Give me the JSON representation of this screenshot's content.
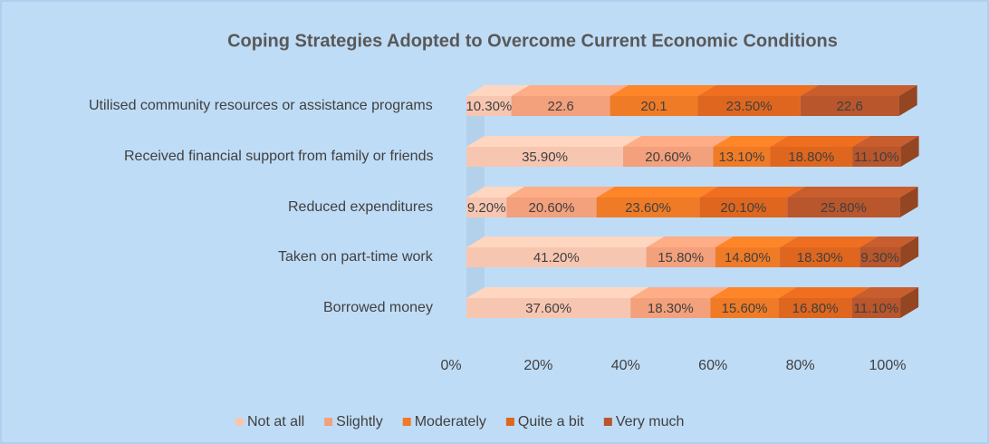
{
  "chart_data": {
    "type": "bar",
    "orientation": "horizontal",
    "stacked": true,
    "title": "Coping Strategies Adopted to Overcome Current Economic Conditions",
    "categories": [
      "Utilised community resources or assistance programs",
      "Received financial support from family or friends",
      "Reduced expenditures",
      "Taken on part-time work",
      "Borrowed money"
    ],
    "series": [
      {
        "name": "Not at all",
        "color": "#f7c6b1",
        "values": [
          10.3,
          35.9,
          9.2,
          41.2,
          37.6
        ],
        "value_labels": [
          "10.30%",
          "35.90%",
          "9.20%",
          "41.20%",
          "37.60%"
        ]
      },
      {
        "name": "Slightly",
        "color": "#f3a07c",
        "values": [
          22.6,
          20.6,
          20.6,
          15.8,
          18.3
        ],
        "value_labels": [
          "22.6",
          "20.60%",
          "20.60%",
          "15.80%",
          "18.30%"
        ]
      },
      {
        "name": "Moderately",
        "color": "#f07b26",
        "values": [
          20.1,
          13.1,
          23.6,
          14.8,
          15.6
        ],
        "value_labels": [
          "20.1",
          "13.10%",
          "23.60%",
          "14.80%",
          "15.60%"
        ]
      },
      {
        "name": "Quite a bit",
        "color": "#de661e",
        "values": [
          23.5,
          18.8,
          20.1,
          18.3,
          16.8
        ],
        "value_labels": [
          "23.50%",
          "18.80%",
          "20.10%",
          "18.30%",
          "16.80%"
        ]
      },
      {
        "name": "Very much",
        "color": "#b9562b",
        "values": [
          22.6,
          11.1,
          25.8,
          9.3,
          11.1
        ],
        "value_labels": [
          "22.6",
          "11.10%",
          "25.80%",
          "9.30%",
          "11.10%"
        ]
      }
    ],
    "xlim": [
      0,
      100
    ],
    "xticks": [
      {
        "value": 0,
        "label": "0%"
      },
      {
        "value": 20,
        "label": "20%"
      },
      {
        "value": 40,
        "label": "40%"
      },
      {
        "value": 60,
        "label": "60%"
      },
      {
        "value": 80,
        "label": "80%"
      },
      {
        "value": 100,
        "label": "100%"
      }
    ],
    "legend": "bottom"
  }
}
